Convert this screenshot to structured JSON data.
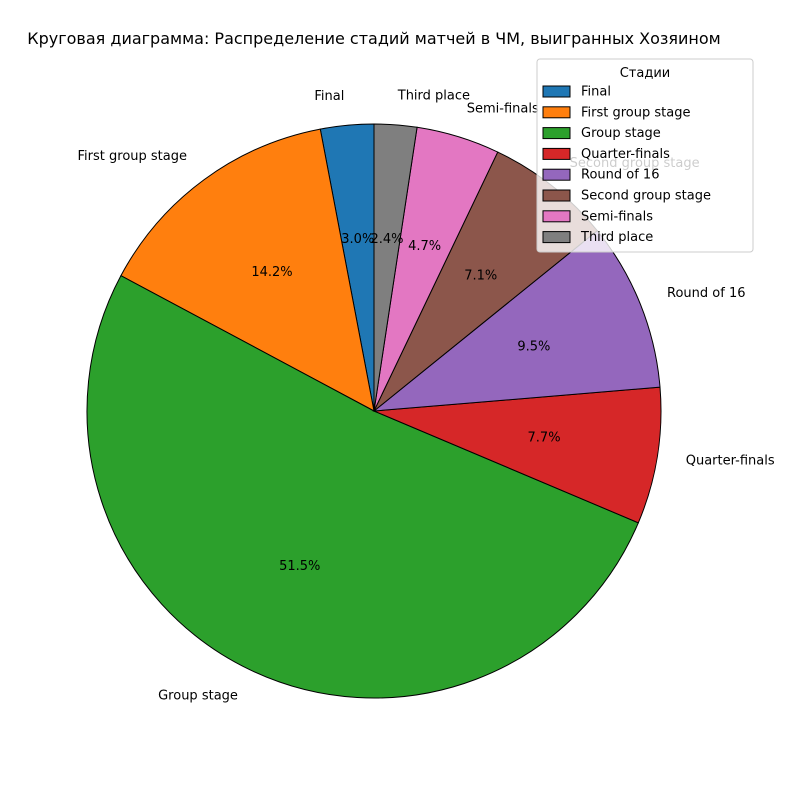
{
  "chart_data": {
    "type": "pie",
    "title": "Круговая диаграмма: Распределение стадий матчей в ЧМ, выигранных Хозяином",
    "legend_title": "Стадии",
    "legend_position": "top-right",
    "start_angle_deg": 90,
    "direction": "counterclockwise",
    "slices": [
      {
        "label": "Final",
        "percent": 3.0,
        "pct_text": "3.0%",
        "color": "#1f77b4"
      },
      {
        "label": "First group stage",
        "percent": 14.2,
        "pct_text": "14.2%",
        "color": "#ff7f0e"
      },
      {
        "label": "Group stage",
        "percent": 51.5,
        "pct_text": "51.5%",
        "color": "#2ca02c"
      },
      {
        "label": "Quarter-finals",
        "percent": 7.7,
        "pct_text": "7.7%",
        "color": "#d62728"
      },
      {
        "label": "Round of 16",
        "percent": 9.5,
        "pct_text": "9.5%",
        "color": "#9467bd"
      },
      {
        "label": "Second group stage",
        "percent": 7.1,
        "pct_text": "7.1%",
        "color": "#8c564b"
      },
      {
        "label": "Semi-finals",
        "percent": 4.7,
        "pct_text": "4.7%",
        "color": "#e377c2"
      },
      {
        "label": "Third place",
        "percent": 2.4,
        "pct_text": "2.4%",
        "color": "#7f7f7f"
      }
    ]
  }
}
